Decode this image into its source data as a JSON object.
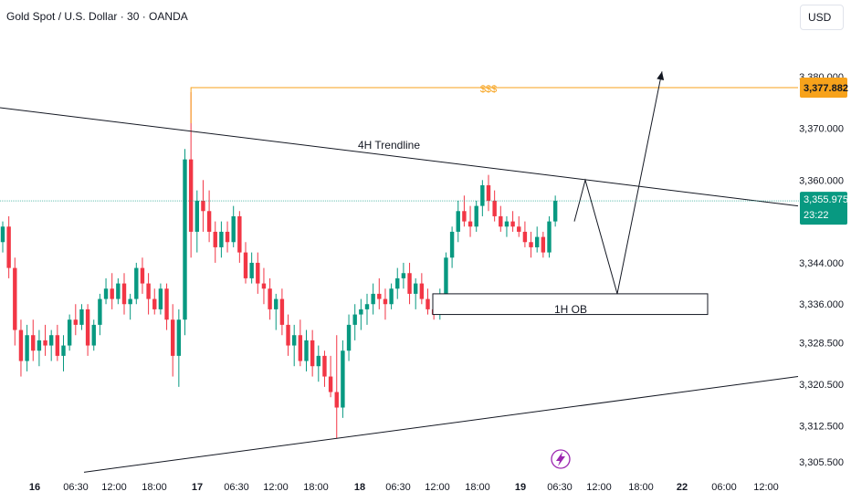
{
  "header": {
    "symbol_title": "Gold Spot / U.S. Dollar · 30 · OANDA",
    "currency_button": "USD"
  },
  "annotations": {
    "liquidity_label": "$$$",
    "trendline_label": "4H Trendline",
    "order_block_label": "1H OB"
  },
  "price_badges": {
    "liquidity_price": "3,377.882",
    "last_price": "3,355.975",
    "countdown": "23:22"
  },
  "colors": {
    "up": "#089981",
    "down": "#f23645",
    "liquidity": "#f7a21b",
    "last_price": "#089981",
    "lines": "#131722",
    "lightning": "#9c27b0"
  },
  "icons": {
    "event_marker": "lightning-icon"
  },
  "chart_data": {
    "type": "candlestick",
    "title": "Gold Spot / U.S. Dollar · 30 · OANDA",
    "y_axis": {
      "ticks": [
        "3,380.000",
        "3,370.000",
        "3,360.000",
        "3,344.000",
        "3,336.000",
        "3,328.500",
        "3,320.500",
        "3,312.500",
        "3,305.500"
      ],
      "range": [
        3303,
        3384
      ]
    },
    "x_axis": {
      "ticks": [
        "16",
        "06:30",
        "12:00",
        "18:00",
        "17",
        "06:30",
        "12:00",
        "18:00",
        "18",
        "06:30",
        "12:00",
        "18:00",
        "19",
        "06:30",
        "12:00",
        "18:00",
        "22",
        "06:00",
        "12:00"
      ]
    },
    "levels": [
      {
        "label": "$$$",
        "price": 3377.882
      }
    ],
    "last_price": 3355.975,
    "order_block": {
      "label": "1H OB",
      "low": 3334,
      "high": 3338
    },
    "trendlines": [
      {
        "label": "4H Trendline",
        "from_price": 3374,
        "to_price": 3355
      },
      {
        "label": "",
        "from_price": 3303.5,
        "to_price": 3322
      }
    ],
    "projection": [
      3360,
      3338,
      3381
    ],
    "candles": [
      [
        3348,
        3352,
        3346,
        3351
      ],
      [
        3351,
        3353,
        3341,
        3343
      ],
      [
        3343,
        3345,
        3328,
        3331
      ],
      [
        3331,
        3333,
        3322,
        3325
      ],
      [
        3325,
        3332,
        3323,
        3330
      ],
      [
        3330,
        3333,
        3325,
        3327
      ],
      [
        3327,
        3331,
        3324,
        3329
      ],
      [
        3329,
        3332,
        3326,
        3328
      ],
      [
        3328,
        3331,
        3325,
        3330
      ],
      [
        3330,
        3332,
        3325,
        3326
      ],
      [
        3326,
        3330,
        3323,
        3328
      ],
      [
        3328,
        3334,
        3327,
        3333
      ],
      [
        3333,
        3336,
        3330,
        3332
      ],
      [
        3332,
        3336,
        3331,
        3335
      ],
      [
        3335,
        3336,
        3326,
        3328
      ],
      [
        3328,
        3333,
        3327,
        3332
      ],
      [
        3332,
        3338,
        3330,
        3337
      ],
      [
        3337,
        3341,
        3336,
        3339
      ],
      [
        3339,
        3342,
        3335,
        3337
      ],
      [
        3337,
        3341,
        3336,
        3340
      ],
      [
        3340,
        3342,
        3334,
        3336
      ],
      [
        3336,
        3338,
        3333,
        3337
      ],
      [
        3337,
        3344,
        3336,
        3343
      ],
      [
        3343,
        3345,
        3338,
        3340
      ],
      [
        3340,
        3342,
        3334,
        3337
      ],
      [
        3337,
        3339,
        3334,
        3335
      ],
      [
        3335,
        3340,
        3334,
        3339
      ],
      [
        3339,
        3340,
        3331,
        3333
      ],
      [
        3333,
        3336,
        3322,
        3326
      ],
      [
        3326,
        3335,
        3320,
        3333
      ],
      [
        3333,
        3366,
        3330,
        3364
      ],
      [
        3364,
        3377,
        3345,
        3350
      ],
      [
        3350,
        3358,
        3346,
        3356
      ],
      [
        3356,
        3360,
        3350,
        3354
      ],
      [
        3354,
        3358,
        3348,
        3350
      ],
      [
        3350,
        3352,
        3344,
        3347
      ],
      [
        3347,
        3352,
        3345,
        3350
      ],
      [
        3350,
        3352,
        3346,
        3348
      ],
      [
        3348,
        3355,
        3347,
        3353
      ],
      [
        3353,
        3354,
        3344,
        3346
      ],
      [
        3346,
        3348,
        3340,
        3341
      ],
      [
        3341,
        3346,
        3340,
        3344
      ],
      [
        3344,
        3346,
        3338,
        3340
      ],
      [
        3340,
        3343,
        3336,
        3339
      ],
      [
        3339,
        3341,
        3333,
        3335
      ],
      [
        3335,
        3338,
        3331,
        3337
      ],
      [
        3337,
        3339,
        3330,
        3332
      ],
      [
        3332,
        3334,
        3326,
        3328
      ],
      [
        3328,
        3332,
        3324,
        3330
      ],
      [
        3330,
        3333,
        3324,
        3325
      ],
      [
        3325,
        3331,
        3323,
        3329
      ],
      [
        3329,
        3331,
        3322,
        3324
      ],
      [
        3324,
        3328,
        3321,
        3326
      ],
      [
        3326,
        3327,
        3320,
        3322
      ],
      [
        3322,
        3326,
        3318,
        3319
      ],
      [
        3319,
        3330,
        3310,
        3316
      ],
      [
        3316,
        3329,
        3314,
        3327
      ],
      [
        3327,
        3334,
        3325,
        3332
      ],
      [
        3332,
        3336,
        3329,
        3334
      ],
      [
        3334,
        3337,
        3331,
        3335
      ],
      [
        3335,
        3338,
        3332,
        3336
      ],
      [
        3336,
        3340,
        3334,
        3338
      ],
      [
        3338,
        3341,
        3335,
        3337
      ],
      [
        3337,
        3339,
        3333,
        3336
      ],
      [
        3336,
        3340,
        3335,
        3339
      ],
      [
        3339,
        3343,
        3337,
        3341
      ],
      [
        3341,
        3344,
        3339,
        3342
      ],
      [
        3342,
        3344,
        3336,
        3338
      ],
      [
        3338,
        3341,
        3335,
        3340
      ],
      [
        3340,
        3342,
        3336,
        3337
      ],
      [
        3337,
        3339,
        3334,
        3335
      ],
      [
        3335,
        3337,
        3333,
        3334
      ],
      [
        3334,
        3339,
        3333,
        3338
      ],
      [
        3338,
        3346,
        3337,
        3345
      ],
      [
        3345,
        3351,
        3343,
        3350
      ],
      [
        3350,
        3356,
        3348,
        3354
      ],
      [
        3354,
        3357,
        3351,
        3352
      ],
      [
        3352,
        3355,
        3349,
        3351
      ],
      [
        3351,
        3356,
        3350,
        3355
      ],
      [
        3355,
        3360,
        3353,
        3359
      ],
      [
        3359,
        3361,
        3354,
        3356
      ],
      [
        3356,
        3358,
        3352,
        3353
      ],
      [
        3353,
        3355,
        3350,
        3351
      ],
      [
        3351,
        3353,
        3349,
        3352
      ],
      [
        3352,
        3354,
        3350,
        3351
      ],
      [
        3351,
        3353,
        3349,
        3350
      ],
      [
        3350,
        3352,
        3347,
        3348
      ],
      [
        3348,
        3350,
        3345,
        3347
      ],
      [
        3347,
        3351,
        3346,
        3349
      ],
      [
        3349,
        3350,
        3345,
        3346
      ],
      [
        3346,
        3353,
        3345,
        3352
      ],
      [
        3352,
        3357,
        3351,
        3356
      ]
    ]
  }
}
